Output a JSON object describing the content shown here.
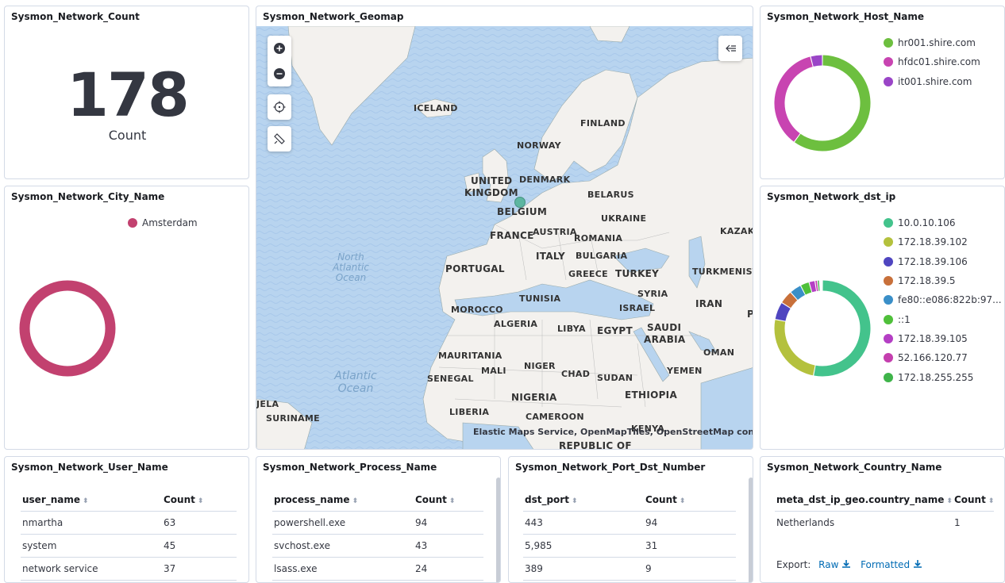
{
  "count_panel": {
    "title": "Sysmon_Network_Count",
    "value": "178",
    "label": "Count"
  },
  "geomap_panel": {
    "title": "Sysmon_Network_Geomap",
    "attribution": "Elastic Maps Service, OpenMapTiles, OpenStreetMap contributors",
    "labels": {
      "iceland": "ICELAND",
      "finland": "FINLAND",
      "norway": "NORWAY",
      "uk1": "UNITED",
      "uk2": "KINGDOM",
      "denmark": "DENMARK",
      "belarus": "BELARUS",
      "belgium": "BELGIUM",
      "ukraine": "UKRAINE",
      "france": "FRANCE",
      "austria": "AUSTRIA",
      "romania": "ROMANIA",
      "kazakh": "KAZAKH",
      "portugal": "PORTUGAL",
      "italy": "ITALY",
      "bulgaria": "BULGARIA",
      "greece": "GREECE",
      "turkey": "TURKEY",
      "turkmenista": "TURKMENISTA",
      "syria": "SYRIA",
      "israel": "ISRAEL",
      "iran": "IRAN",
      "morocco": "MOROCCO",
      "tunisia": "TUNISIA",
      "algeria": "ALGERIA",
      "libya": "LIBYA",
      "egypt": "EGYPT",
      "saudi1": "SAUDI",
      "saudi2": "ARABIA",
      "oman": "OMAN",
      "mauritania": "MAURITANIA",
      "mali": "MALI",
      "niger": "NIGER",
      "chad": "CHAD",
      "sudan": "SUDAN",
      "yemen": "YEMEN",
      "senegal": "SENEGAL",
      "nigeria": "NIGERIA",
      "ethiopia": "ETHIOPIA",
      "jela": "JELA",
      "suriname": "SURINAME",
      "liberia": "LIBERIA",
      "cameroon": "CAMEROON",
      "kenya": "KENYA",
      "republic": "REPUBLIC OF",
      "p": "P",
      "na1": "North",
      "na2": "Atlantic",
      "na3": "Ocean",
      "a1": "Atlantic",
      "a2": "Ocean"
    }
  },
  "host_panel": {
    "title": "Sysmon_Network_Host_Name",
    "legend": [
      {
        "label": "hr001.shire.com",
        "color": "#6dbf3f"
      },
      {
        "label": "hfdc01.shire.com",
        "color": "#c844b1"
      },
      {
        "label": "it001.shire.com",
        "color": "#9a45c7"
      }
    ]
  },
  "city_panel": {
    "title": "Sysmon_Network_City_Name",
    "legend": [
      {
        "label": "Amsterdam",
        "color": "#c2416f"
      }
    ]
  },
  "dstip_panel": {
    "title": "Sysmon_Network_dst_ip",
    "legend": [
      {
        "label": "10.0.10.106",
        "color": "#43c38c"
      },
      {
        "label": "172.18.39.102",
        "color": "#b4c13d"
      },
      {
        "label": "172.18.39.106",
        "color": "#4f45c0"
      },
      {
        "label": "172.18.39.5",
        "color": "#c8703a"
      },
      {
        "label": "fe80::e086:822b:97...",
        "color": "#3a8fc8"
      },
      {
        "label": "::1",
        "color": "#4fc03a"
      },
      {
        "label": "172.18.39.105",
        "color": "#b43fc4"
      },
      {
        "label": "52.166.120.77",
        "color": "#c43fae"
      },
      {
        "label": "172.18.255.255",
        "color": "#3fb44a"
      }
    ]
  },
  "user_panel": {
    "title": "Sysmon_Network_User_Name",
    "columns": [
      "user_name",
      "Count"
    ],
    "rows": [
      [
        "nmartha",
        "63"
      ],
      [
        "system",
        "45"
      ],
      [
        "network service",
        "37"
      ]
    ]
  },
  "process_panel": {
    "title": "Sysmon_Network_Process_Name",
    "columns": [
      "process_name",
      "Count"
    ],
    "rows": [
      [
        "powershell.exe",
        "94"
      ],
      [
        "svchost.exe",
        "43"
      ],
      [
        "lsass.exe",
        "24"
      ]
    ]
  },
  "port_panel": {
    "title": "Sysmon_Network_Port_Dst_Number",
    "columns": [
      "dst_port",
      "Count"
    ],
    "rows": [
      [
        "443",
        "94"
      ],
      [
        "5,985",
        "31"
      ],
      [
        "389",
        "9"
      ]
    ]
  },
  "country_panel": {
    "title": "Sysmon_Network_Country_Name",
    "columns": [
      "meta_dst_ip_geo.country_name",
      "Count"
    ],
    "rows": [
      [
        "Netherlands",
        "1"
      ]
    ],
    "export_label": "Export:",
    "raw_label": "Raw",
    "formatted_label": "Formatted"
  }
}
